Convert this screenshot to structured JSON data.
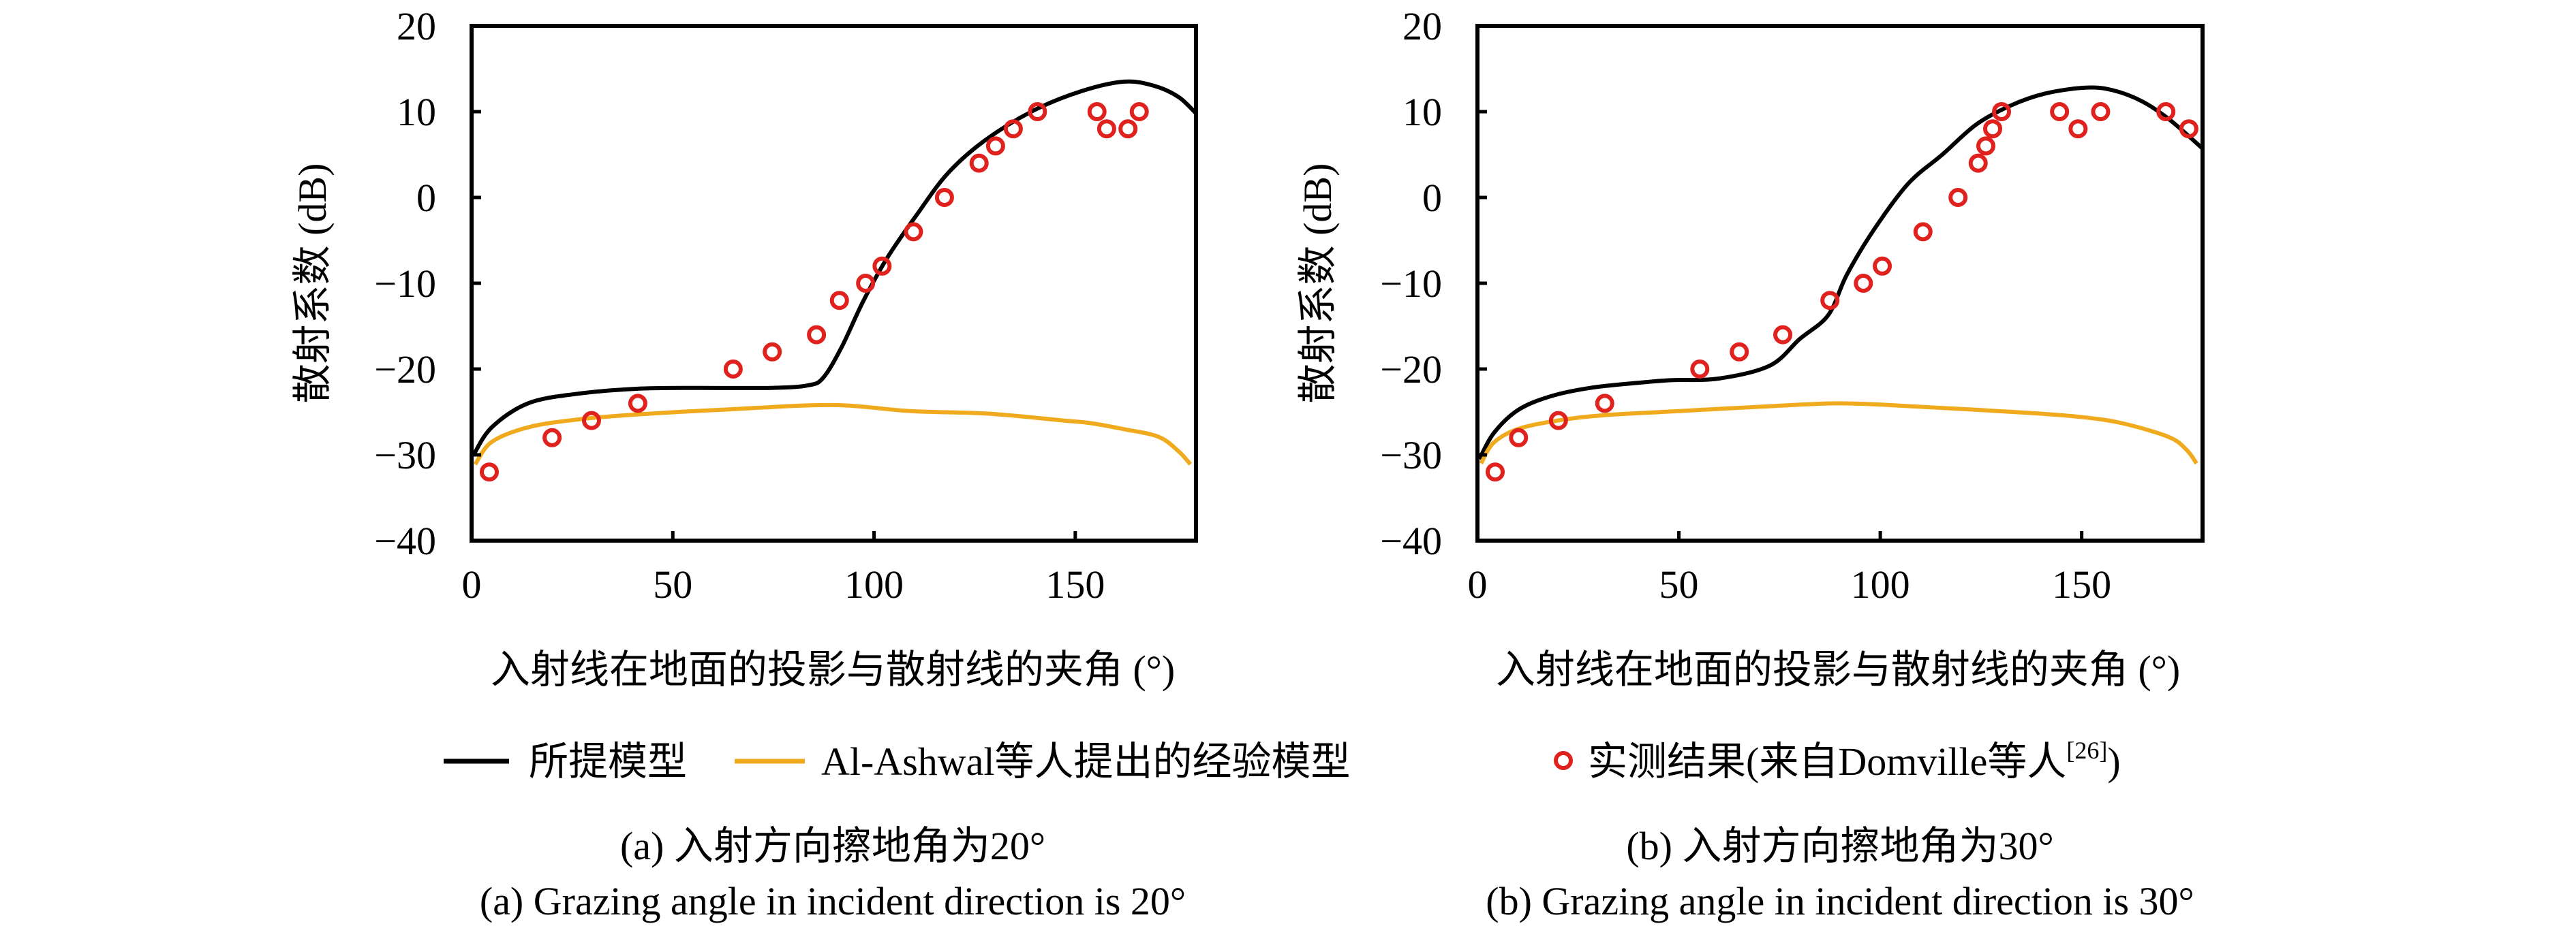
{
  "figure": {
    "legend": [
      {
        "label": "所提模型",
        "type": "line",
        "color": "#000000"
      },
      {
        "label": "Al-Ashwal等人提出的经验模型",
        "type": "line",
        "color": "#F0AA1E"
      },
      {
        "label": "实测结果(来自Domville等人",
        "superscript": "[26]",
        "suffix": ")",
        "type": "marker-circle",
        "color": "#E0221E"
      }
    ]
  },
  "chart_data": [
    {
      "type": "line",
      "panel": "a",
      "caption_cn": "(a) 入射方向擦地角为20°",
      "caption_en": "(a) Grazing angle in incident direction is 20°",
      "xlabel": "入射线在地面的投影与散射线的夹角 (°)",
      "ylabel": "散射系数 (dB)",
      "xlim": [
        0,
        180
      ],
      "ylim": [
        -40,
        20
      ],
      "xticks": [
        0,
        50,
        100,
        150
      ],
      "yticks": [
        20,
        10,
        0,
        -10,
        -20,
        -30,
        -40
      ],
      "xtick_labels": [
        "0",
        "50",
        "100",
        "150"
      ],
      "ytick_labels": [
        "20",
        "10",
        "0",
        "−10",
        "−20",
        "−30",
        "−40"
      ],
      "grid": false,
      "series": [
        {
          "name": "所提模型",
          "style": "line",
          "color": "#000000",
          "x": [
            0.5,
            5,
            14,
            26,
            41,
            56,
            74.5,
            83.6,
            87.4,
            92,
            97.2,
            103.2,
            110.8,
            118.3,
            127.4,
            139.5,
            151.6,
            162.2,
            169.7,
            175.7,
            180
          ],
          "y": [
            -30.0,
            -26.8,
            -24.0,
            -22.9,
            -22.3,
            -22.2,
            -22.2,
            -21.9,
            -21.0,
            -17.4,
            -12.2,
            -7.1,
            -1.9,
            2.8,
            6.6,
            10.1,
            12.4,
            13.5,
            13.0,
            11.7,
            9.8
          ]
        },
        {
          "name": "Al-Ashwal等人提出的经验模型",
          "style": "line",
          "color": "#F0AA1E",
          "x": [
            0.9,
            5,
            14,
            26,
            41,
            64,
            89.6,
            109,
            128.3,
            147,
            153.7,
            162,
            170.7,
            175.7,
            178.6
          ],
          "y": [
            -31.1,
            -28.5,
            -26.8,
            -25.9,
            -25.3,
            -24.7,
            -24.2,
            -24.9,
            -25.2,
            -26.0,
            -26.3,
            -27.0,
            -27.9,
            -29.6,
            -31.1
          ]
        },
        {
          "name": "实测结果(来自Domville等人[26])",
          "style": "marker",
          "color": "#E0221E",
          "x": [
            4.4,
            20,
            29.8,
            41.3,
            65,
            74.7,
            85.7,
            91.4,
            97.9,
            102,
            109.8,
            117.5,
            126.1,
            130.2,
            134.6,
            140.6,
            155.4,
            157.8,
            163.1,
            165.9
          ],
          "y": [
            -32,
            -28,
            -26,
            -24,
            -20,
            -18,
            -16,
            -12,
            -10,
            -8,
            -4,
            0,
            4,
            6,
            8,
            10,
            10,
            8,
            8,
            10
          ]
        }
      ]
    },
    {
      "type": "line",
      "panel": "b",
      "caption_cn": "(b) 入射方向擦地角为30°",
      "caption_en": "(b) Grazing angle in incident direction is 30°",
      "xlabel": "入射线在地面的投影与散射线的夹角 (°)",
      "ylabel": "散射系数 (dB)",
      "xlim": [
        0,
        180
      ],
      "ylim": [
        -40,
        20
      ],
      "xticks": [
        0,
        50,
        100,
        150
      ],
      "yticks": [
        20,
        10,
        0,
        -10,
        -20,
        -30,
        -40
      ],
      "xtick_labels": [
        "0",
        "50",
        "100",
        "150"
      ],
      "ytick_labels": [
        "20",
        "10",
        "0",
        "−10",
        "−20",
        "−30",
        "−40"
      ],
      "grid": false,
      "series": [
        {
          "name": "所提模型",
          "style": "line",
          "color": "#000000",
          "x": [
            0.5,
            4,
            10,
            18,
            28,
            40,
            48,
            60,
            72.6,
            80,
            87.1,
            91.7,
            98.5,
            106.9,
            115.4,
            123.8,
            132.3,
            140.8,
            150.9,
            157.7,
            165,
            172,
            180
          ],
          "y": [
            -30.5,
            -27.5,
            -24.8,
            -23.2,
            -22.2,
            -21.6,
            -21.3,
            -21.1,
            -19.6,
            -16.5,
            -13.7,
            -9.0,
            -3.7,
            1.6,
            5.0,
            8.5,
            10.7,
            12.1,
            12.8,
            12.5,
            11.2,
            9.0,
            5.7
          ]
        },
        {
          "name": "Al-Ashwal等人提出的经验模型",
          "style": "line",
          "color": "#F0AA1E",
          "x": [
            0.9,
            4,
            10,
            20,
            31,
            50,
            70,
            90,
            110,
            136.5,
            150,
            159.9,
            171.5,
            176,
            178.5
          ],
          "y": [
            -31.0,
            -28.6,
            -27.0,
            -26.0,
            -25.4,
            -24.9,
            -24.4,
            -24.0,
            -24.4,
            -25.1,
            -25.6,
            -26.3,
            -27.9,
            -29.4,
            -31.0
          ]
        },
        {
          "name": "实测结果(来自Domville等人[26])",
          "style": "marker",
          "color": "#E0221E",
          "x": [
            4.4,
            10.2,
            20.1,
            31.6,
            55.2,
            65,
            75.8,
            87.5,
            95.8,
            100.5,
            110.6,
            119.3,
            124.3,
            126.2,
            127.9,
            130.1,
            144.5,
            149.1,
            154.7,
            170.9,
            176.6
          ],
          "y": [
            -32,
            -28,
            -26,
            -24,
            -20,
            -18,
            -16,
            -12,
            -10,
            -8,
            -4,
            0,
            4,
            6,
            8,
            10,
            10,
            8,
            10,
            10,
            8
          ]
        }
      ]
    }
  ]
}
